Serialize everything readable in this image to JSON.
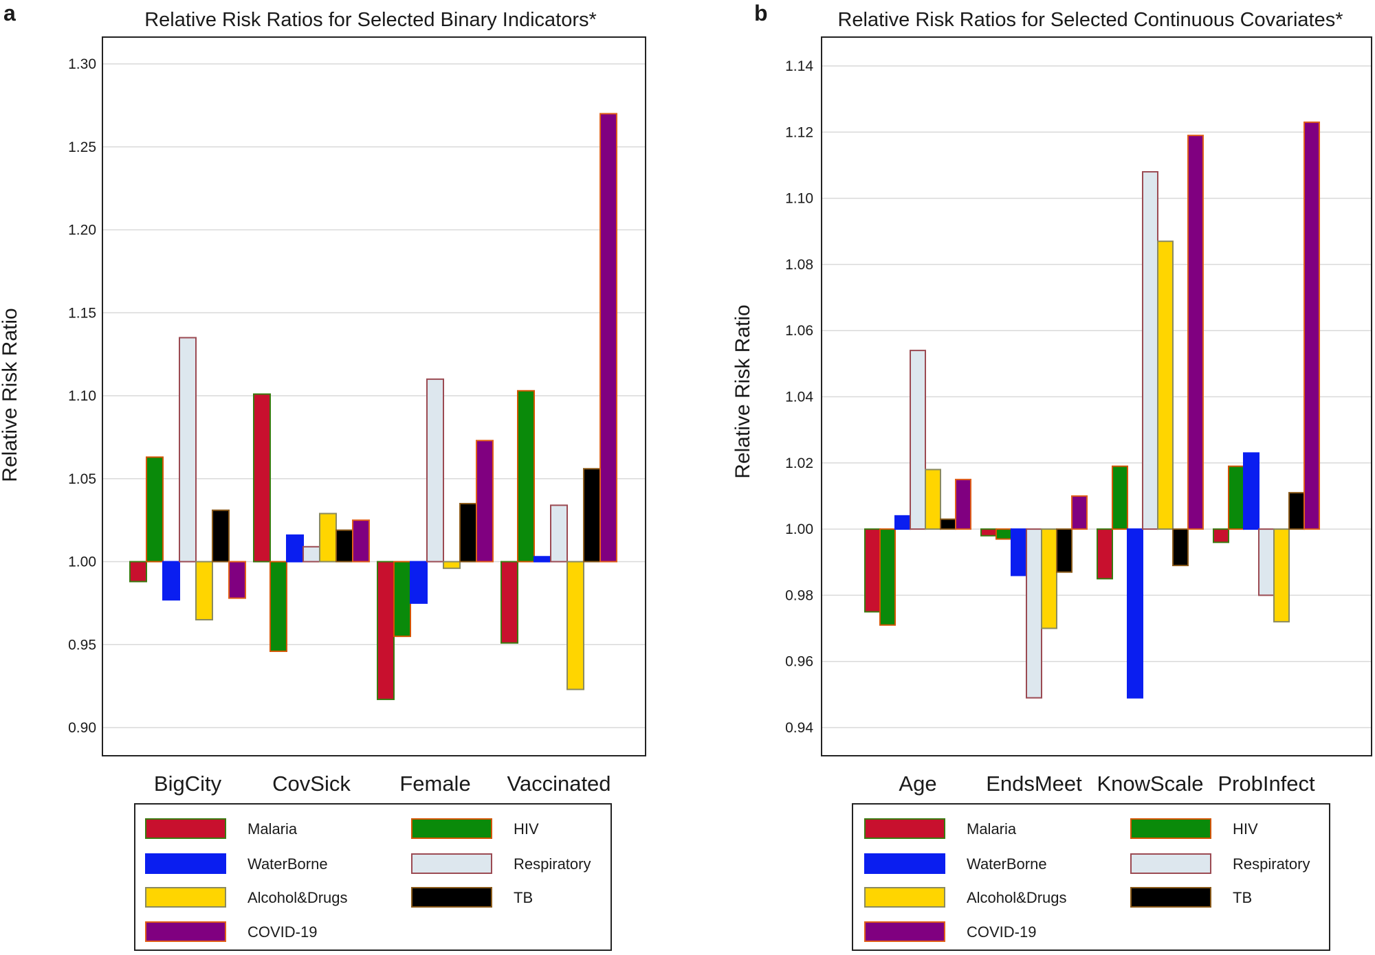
{
  "chart_data": [
    {
      "panel": "a",
      "type": "bar",
      "title": "Relative Risk Ratios for Selected Binary Indicators*",
      "xlabel": "",
      "ylabel": "Relative Risk Ratio",
      "baseline": 1.0,
      "ylim": [
        0.88,
        1.3
      ],
      "yticks": [
        0.9,
        0.95,
        1.0,
        1.05,
        1.1,
        1.15,
        1.2,
        1.25,
        1.3
      ],
      "ytick_labels": [
        "0.90",
        "0.95",
        "1.00",
        "1.05",
        "1.10",
        "1.15",
        "1.20",
        "1.25",
        "1.30"
      ],
      "grid": true,
      "legend_position": "bottom",
      "categories": [
        "BigCity",
        "CovSick",
        "Female",
        "Vaccinated"
      ],
      "series": [
        {
          "name": "Malaria",
          "fill": "#c8102e",
          "stroke": "#3a7a10",
          "values": [
            0.988,
            1.101,
            0.917,
            0.951
          ]
        },
        {
          "name": "HIV",
          "fill": "#0a8a0a",
          "stroke": "#d35400",
          "values": [
            1.063,
            0.946,
            0.955,
            1.103
          ]
        },
        {
          "name": "WaterBorne",
          "fill": "#0a1ef0",
          "stroke": "#0a1ef0",
          "values": [
            0.977,
            1.016,
            0.975,
            1.003
          ]
        },
        {
          "name": "Respiratory",
          "fill": "#dde7ee",
          "stroke": "#9b4a52",
          "values": [
            1.135,
            1.009,
            1.11,
            1.034
          ]
        },
        {
          "name": "Alcohol&Drugs",
          "fill": "#ffd500",
          "stroke": "#8a8a60",
          "values": [
            0.965,
            1.029,
            0.996,
            0.923
          ]
        },
        {
          "name": "TB",
          "fill": "#000000",
          "stroke": "#8a5a1a",
          "values": [
            1.031,
            1.019,
            1.035,
            1.056
          ]
        },
        {
          "name": "COVID-19",
          "fill": "#800080",
          "stroke": "#e0601a",
          "values": [
            0.978,
            1.025,
            1.073,
            1.27
          ]
        }
      ]
    },
    {
      "panel": "b",
      "type": "bar",
      "title": "Relative Risk Ratios for Selected Continuous Covariates*",
      "xlabel": "",
      "ylabel": "Relative Risk Ratio",
      "baseline": 1.0,
      "ylim": [
        0.932,
        1.146
      ],
      "yticks": [
        0.94,
        0.96,
        0.98,
        1.0,
        1.02,
        1.04,
        1.06,
        1.08,
        1.1,
        1.12,
        1.14
      ],
      "ytick_labels": [
        "0.94",
        "0.96",
        "0.98",
        "1.00",
        "1.02",
        "1.04",
        "1.06",
        "1.08",
        "1.10",
        "1.12",
        "1.14"
      ],
      "grid": true,
      "legend_position": "bottom",
      "categories": [
        "Age",
        "EndsMeet",
        "KnowScale",
        "ProbInfect"
      ],
      "series": [
        {
          "name": "Malaria",
          "fill": "#c8102e",
          "stroke": "#3a7a10",
          "values": [
            0.975,
            0.998,
            0.985,
            0.996
          ]
        },
        {
          "name": "HIV",
          "fill": "#0a8a0a",
          "stroke": "#d35400",
          "values": [
            0.971,
            0.997,
            1.019,
            1.019
          ]
        },
        {
          "name": "WaterBorne",
          "fill": "#0a1ef0",
          "stroke": "#0a1ef0",
          "values": [
            1.004,
            0.986,
            0.949,
            1.023
          ]
        },
        {
          "name": "Respiratory",
          "fill": "#dde7ee",
          "stroke": "#9b4a52",
          "values": [
            1.054,
            0.949,
            1.108,
            0.98
          ]
        },
        {
          "name": "Alcohol&Drugs",
          "fill": "#ffd500",
          "stroke": "#8a8a60",
          "values": [
            1.018,
            0.97,
            1.087,
            0.972
          ]
        },
        {
          "name": "TB",
          "fill": "#000000",
          "stroke": "#8a5a1a",
          "values": [
            1.003,
            0.987,
            0.989,
            1.011
          ]
        },
        {
          "name": "COVID-19",
          "fill": "#800080",
          "stroke": "#e0601a",
          "values": [
            1.015,
            1.01,
            1.119,
            1.123
          ]
        }
      ]
    }
  ]
}
